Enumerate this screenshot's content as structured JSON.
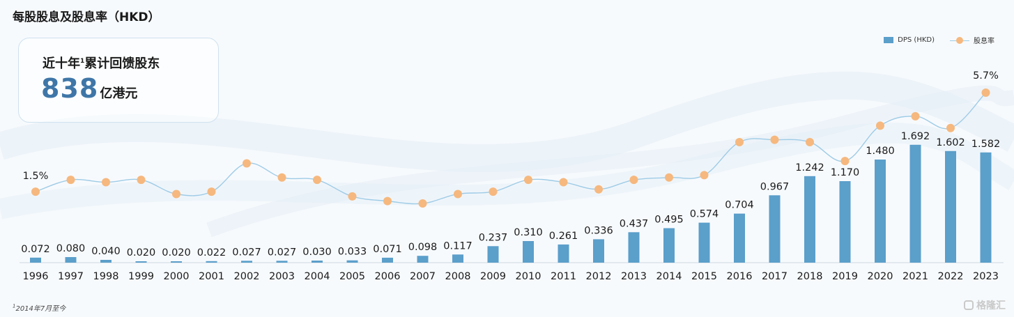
{
  "title": "每股股息及股息率（HKD）",
  "callout": {
    "line1_text": "近十年",
    "line1_sup": "1",
    "line1_rest": "累计回馈股东",
    "amount": "838",
    "unit": "亿港元"
  },
  "legend": {
    "bar_label": "DPS (HKD)",
    "line_label": "股息率"
  },
  "footnote": {
    "sup": "1",
    "text": "2014年7月至今"
  },
  "watermark": "格隆汇",
  "colors": {
    "bar": "#5b9fcb",
    "line": "#9ecbe6",
    "marker": "#f6b87e",
    "accent": "#3f76a8"
  },
  "chart_data": {
    "type": "bar+line",
    "categories": [
      "1996",
      "1997",
      "1998",
      "1999",
      "2000",
      "2001",
      "2002",
      "2003",
      "2004",
      "2005",
      "2006",
      "2007",
      "2008",
      "2009",
      "2010",
      "2011",
      "2012",
      "2013",
      "2014",
      "2015",
      "2016",
      "2017",
      "2018",
      "2019",
      "2020",
      "2021",
      "2022",
      "2023"
    ],
    "dps": {
      "name": "DPS (HKD)",
      "values": [
        0.072,
        0.08,
        0.04,
        0.02,
        0.02,
        0.022,
        0.027,
        0.027,
        0.03,
        0.033,
        0.071,
        0.098,
        0.117,
        0.237,
        0.31,
        0.261,
        0.336,
        0.437,
        0.495,
        0.574,
        0.704,
        0.967,
        1.242,
        1.17,
        1.48,
        1.692,
        1.602,
        1.582
      ],
      "labels": [
        "0.072",
        "0.080",
        "0.040",
        "0.020",
        "0.020",
        "0.022",
        "0.027",
        "0.027",
        "0.030",
        "0.033",
        "0.071",
        "0.098",
        "0.117",
        "0.237",
        "0.310",
        "0.261",
        "0.336",
        "0.437",
        "0.495",
        "0.574",
        "0.704",
        "0.967",
        "1.242",
        "1.170",
        "1.480",
        "1.692",
        "1.602",
        "1.582"
      ]
    },
    "yield": {
      "name": "股息率",
      "values": [
        1.5,
        2.0,
        1.9,
        2.0,
        1.4,
        1.5,
        2.7,
        2.1,
        2.0,
        1.3,
        1.1,
        1.0,
        1.4,
        1.5,
        2.0,
        1.9,
        1.6,
        2.0,
        2.1,
        2.2,
        3.6,
        3.7,
        3.6,
        2.8,
        4.3,
        4.7,
        4.2,
        5.7
      ],
      "labels": [
        "1.5%",
        "",
        "",
        "",
        "",
        "",
        "",
        "",
        "",
        "",
        "",
        "",
        "",
        "",
        "",
        "",
        "",
        "",
        "",
        "",
        "",
        "",
        "",
        "",
        "",
        "",
        "",
        "5.7%"
      ]
    }
  }
}
